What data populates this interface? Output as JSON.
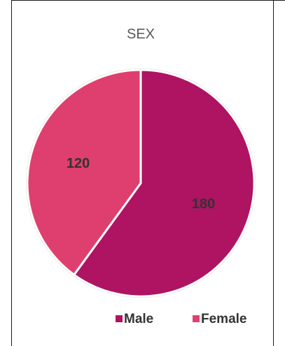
{
  "chart_data": {
    "type": "pie",
    "title": "SEX",
    "categories": [
      "Male",
      "Female"
    ],
    "values": [
      180,
      120
    ],
    "data_labels": [
      "180",
      "120"
    ],
    "colors": [
      "#ae1462",
      "#df3f6e"
    ],
    "legend_position": "bottom-right",
    "start_angle": "12-o-clock",
    "direction": "clockwise"
  }
}
